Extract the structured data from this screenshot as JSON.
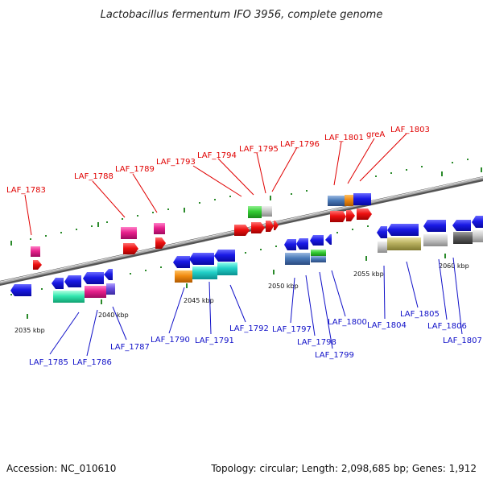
{
  "title": "Lactobacillus fermentum IFO 3956, complete genome",
  "footer": {
    "accession": "Accession: NC_010610",
    "topology": "Topology: circular; Length: 2,098,685 bp; Genes: 1,912"
  },
  "colors": {
    "top_label": "#e00000",
    "bottom_label": "#1010c8",
    "blue_gene": "#1a1ae6",
    "red_gene": "#ee1111",
    "pink_gene": "#e8208c",
    "backbone": "#888888",
    "tick": "#2a8a2a"
  },
  "scale_labels": [
    "2035 kbp",
    "2040 kbp",
    "2045 kbp",
    "2050 kbp",
    "2055 kbp",
    "2060 kbp"
  ],
  "top_labels": [
    "LAF_1783",
    "LAF_1788",
    "LAF_1789",
    "LAF_1793",
    "LAF_1794",
    "LAF_1795",
    "LAF_1796",
    "LAF_1801",
    "greA",
    "LAF_1803"
  ],
  "bottom_labels": [
    "LAF_1785",
    "LAF_1786",
    "LAF_1787",
    "LAF_1790",
    "LAF_1791",
    "LAF_1792",
    "LAF_1797",
    "LAF_1798",
    "LAF_1799",
    "LAF_1800",
    "LAF_1804",
    "LAF_1805",
    "LAF_1806",
    "LAF_1807"
  ]
}
